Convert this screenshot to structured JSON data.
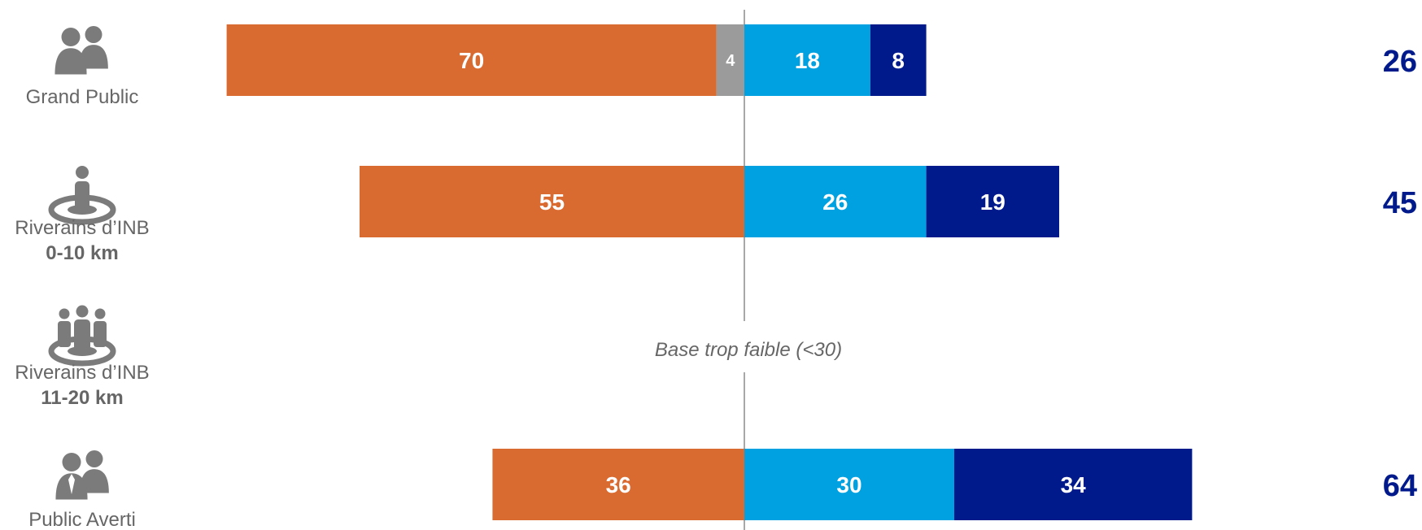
{
  "chart_data": {
    "type": "bar",
    "orientation": "horizontal-diverging",
    "colors": {
      "grey": "#9b9b9b",
      "orange": "#d96b31",
      "lightblue": "#00a1e0",
      "darkblue": "#001a8c",
      "total": "#001a8c",
      "axis": "#8c8c8c",
      "icon": "#7b7b7b"
    },
    "rows": [
      {
        "icon": "two-people-icon",
        "label_line1": "Grand Public",
        "label_line2": "",
        "left": [
          {
            "value": 4,
            "color_key": "grey"
          },
          {
            "value": 70,
            "color_key": "orange"
          }
        ],
        "right": [
          {
            "value": 18,
            "color_key": "lightblue"
          },
          {
            "value": 8,
            "color_key": "darkblue"
          }
        ],
        "total": "26",
        "note": ""
      },
      {
        "icon": "person-target-icon",
        "label_line1": "Riverains d’INB",
        "label_line2": "0-10 km",
        "left": [
          {
            "value": 55,
            "color_key": "orange"
          }
        ],
        "right": [
          {
            "value": 26,
            "color_key": "lightblue"
          },
          {
            "value": 19,
            "color_key": "darkblue"
          }
        ],
        "total": "45",
        "note": ""
      },
      {
        "icon": "group-target-icon",
        "label_line1": "Riverains d’INB",
        "label_line2": "11-20 km",
        "left": [],
        "right": [],
        "total": "",
        "note": "Base trop faible (<30)"
      },
      {
        "icon": "business-people-icon",
        "label_line1": "Public Averti",
        "label_line2": "",
        "left": [
          {
            "value": 36,
            "color_key": "orange"
          }
        ],
        "right": [
          {
            "value": 30,
            "color_key": "lightblue"
          },
          {
            "value": 34,
            "color_key": "darkblue"
          }
        ],
        "total": "64",
        "note": ""
      }
    ]
  }
}
